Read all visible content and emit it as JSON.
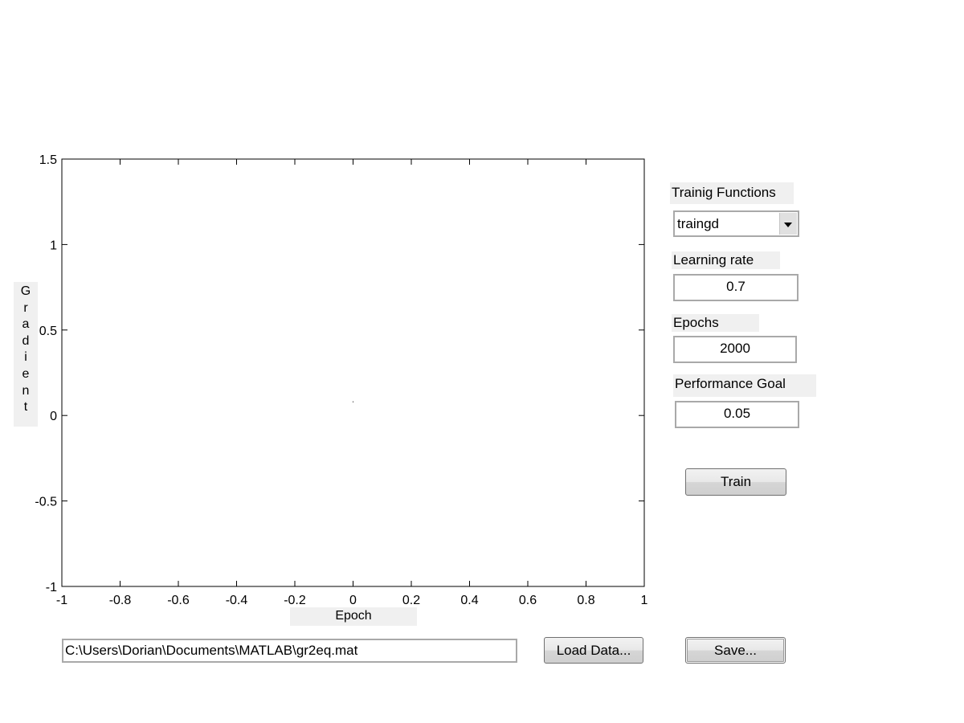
{
  "chart_data": {
    "type": "line",
    "xlim": [
      -1,
      1
    ],
    "ylim": [
      -1,
      1.5
    ],
    "x_ticks": [
      -1,
      -0.8,
      -0.6,
      -0.4,
      -0.2,
      0,
      0.2,
      0.4,
      0.6,
      0.8,
      1
    ],
    "x_tick_labels": [
      "-1",
      "-0.8",
      "-0.6",
      "-0.4",
      "-0.2",
      "0",
      "0.2",
      "0.4",
      "0.6",
      "0.8",
      "1"
    ],
    "y_ticks": [
      -1,
      -0.5,
      0,
      0.5,
      1,
      1.5
    ],
    "y_tick_labels": [
      "-1",
      "-0.5",
      "0",
      "0.5",
      "1",
      "1.5"
    ],
    "xlabel": "Epoch",
    "ylabel": "Gradient",
    "grid": false,
    "series": [
      {
        "x": [
          0
        ],
        "y": [
          0.08
        ]
      }
    ]
  },
  "controls": {
    "training_functions_label": "Trainig Functions",
    "training_function_value": "traingd",
    "learning_rate_label": "Learning rate",
    "learning_rate_value": "0.7",
    "epochs_label": "Epochs",
    "epochs_value": "2000",
    "performance_goal_label": "Performance Goal",
    "performance_goal_value": "0.05",
    "train_button": "Train"
  },
  "bottom": {
    "file_path": "C:\\Users\\Dorian\\Documents\\MATLAB\\gr2eq.mat",
    "load_button": "Load Data...",
    "save_button": "Save..."
  }
}
